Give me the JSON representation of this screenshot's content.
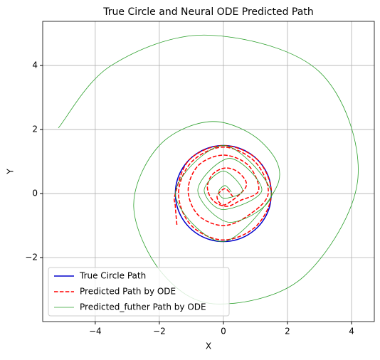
{
  "chart_data": {
    "type": "line",
    "title": "True Circle and Neural ODE Predicted Path",
    "xlabel": "X",
    "ylabel": "Y",
    "xlim": [
      -5.64,
      4.71
    ],
    "ylim": [
      -4.0,
      5.38
    ],
    "xticks": [
      {
        "value": -4,
        "label": "−4"
      },
      {
        "value": -2,
        "label": "−2"
      },
      0,
      2,
      4
    ],
    "yticks": [
      {
        "value": -2,
        "label": "−2"
      },
      0,
      2,
      4
    ],
    "grid": true,
    "legend": "lower left",
    "series": [
      {
        "name": "True Circle Path",
        "color": "#0000cc",
        "style": "solid",
        "x": [
          1.5,
          1.449,
          1.299,
          1.061,
          0.75,
          0.388,
          0,
          -0.388,
          -0.75,
          -1.061,
          -1.299,
          -1.449,
          -1.5,
          -1.449,
          -1.299,
          -1.061,
          -0.75,
          -0.388,
          0,
          0.388,
          0.75,
          1.061,
          1.299,
          1.449,
          1.5
        ],
        "values": [
          0,
          0.388,
          0.75,
          1.061,
          1.299,
          1.449,
          1.5,
          1.449,
          1.299,
          1.061,
          0.75,
          0.388,
          0,
          -0.388,
          -0.75,
          -1.061,
          -1.299,
          -1.449,
          -1.5,
          -1.449,
          -1.299,
          -1.061,
          -0.75,
          -0.388,
          0
        ]
      },
      {
        "name": "Predicted Path by ODE",
        "color": "#ff0000",
        "style": "dashed",
        "x": [
          0.3,
          0.05,
          -0.2,
          0.05,
          0.7,
          0.52,
          0.1,
          -0.32,
          -0.5,
          -0.32,
          0.1,
          0.52,
          1.1,
          0.78,
          0,
          -0.78,
          -1.1,
          -0.78,
          0,
          0.78,
          1.4,
          0.99,
          0,
          -0.99,
          -1.4,
          -1.0,
          0,
          1.02,
          1.5,
          1.06,
          0,
          -1.06,
          -1.5,
          -1.5,
          -1.45
        ],
        "values": [
          -0.1,
          0.15,
          -0.1,
          -0.35,
          0.2,
          0.62,
          0.8,
          0.62,
          0.2,
          -0.22,
          -0.4,
          -0.22,
          0.1,
          0.88,
          1.2,
          0.88,
          0.1,
          -0.68,
          -1.0,
          -0.68,
          0,
          0.99,
          1.45,
          0.99,
          0,
          -1.0,
          -1.45,
          -1.02,
          0,
          1.06,
          1.5,
          1.06,
          0,
          -0.4,
          -1.0
        ]
      },
      {
        "name": "Predicted_futher Path by ODE",
        "color": "#2ca02c",
        "style": "thin",
        "x": [
          0.25,
          0.05,
          -0.15,
          0.05,
          0.6,
          0,
          -0.6,
          0,
          1.2,
          0.2,
          -0.8,
          0.2,
          1.5,
          0,
          -1.5,
          0,
          1.7,
          1.2,
          -0.35,
          -2.0,
          -2.8,
          -1.9,
          -0.2,
          2.5,
          4.2,
          3.0,
          -0.5,
          -3.5,
          -5.15
        ],
        "values": [
          0.05,
          0.25,
          0.05,
          -0.15,
          0.1,
          0.7,
          0.1,
          -0.5,
          0.1,
          1.1,
          0.1,
          -0.9,
          0,
          1.5,
          0,
          -1.5,
          0.3,
          1.6,
          2.25,
          1.5,
          -0.4,
          -2.5,
          -3.45,
          -2.6,
          0.5,
          3.8,
          4.95,
          4.0,
          2.05
        ]
      }
    ]
  }
}
